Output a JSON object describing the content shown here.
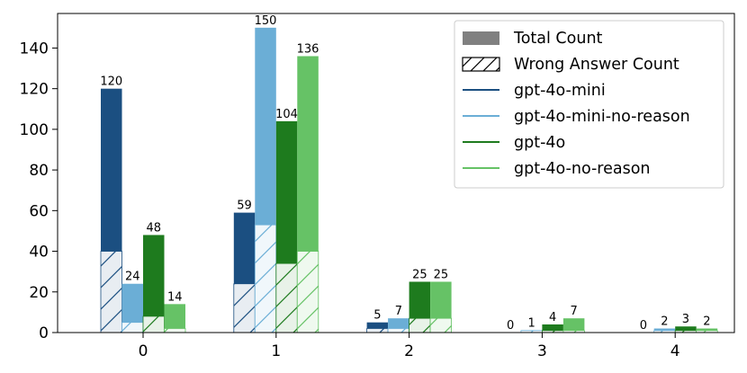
{
  "chart_data": {
    "type": "bar",
    "categories": [
      "0",
      "1",
      "2",
      "3",
      "4"
    ],
    "ylim": [
      0,
      157
    ],
    "yticks": [
      0,
      20,
      40,
      60,
      80,
      100,
      120,
      140
    ],
    "grid": false,
    "legend_position": "top-right",
    "legend": {
      "total_label": "Total Count",
      "wrong_label": "Wrong Answer Count"
    },
    "series": [
      {
        "name": "gpt-4o-mini",
        "color": "#1b4f81",
        "values": [
          120,
          59,
          5,
          0,
          0
        ],
        "wrong": [
          40,
          24,
          2,
          0,
          0
        ]
      },
      {
        "name": "gpt-4o-mini-no-reason",
        "color": "#6baed6",
        "values": [
          24,
          150,
          7,
          1,
          2
        ],
        "wrong": [
          5,
          53,
          2,
          1,
          1
        ]
      },
      {
        "name": "gpt-4o",
        "color": "#1e7b1e",
        "values": [
          48,
          104,
          25,
          4,
          3
        ],
        "wrong": [
          8,
          34,
          7,
          1,
          1
        ]
      },
      {
        "name": "gpt-4o-no-reason",
        "color": "#66c266",
        "values": [
          14,
          136,
          25,
          7,
          2
        ],
        "wrong": [
          2,
          40,
          7,
          1,
          1
        ]
      }
    ]
  }
}
